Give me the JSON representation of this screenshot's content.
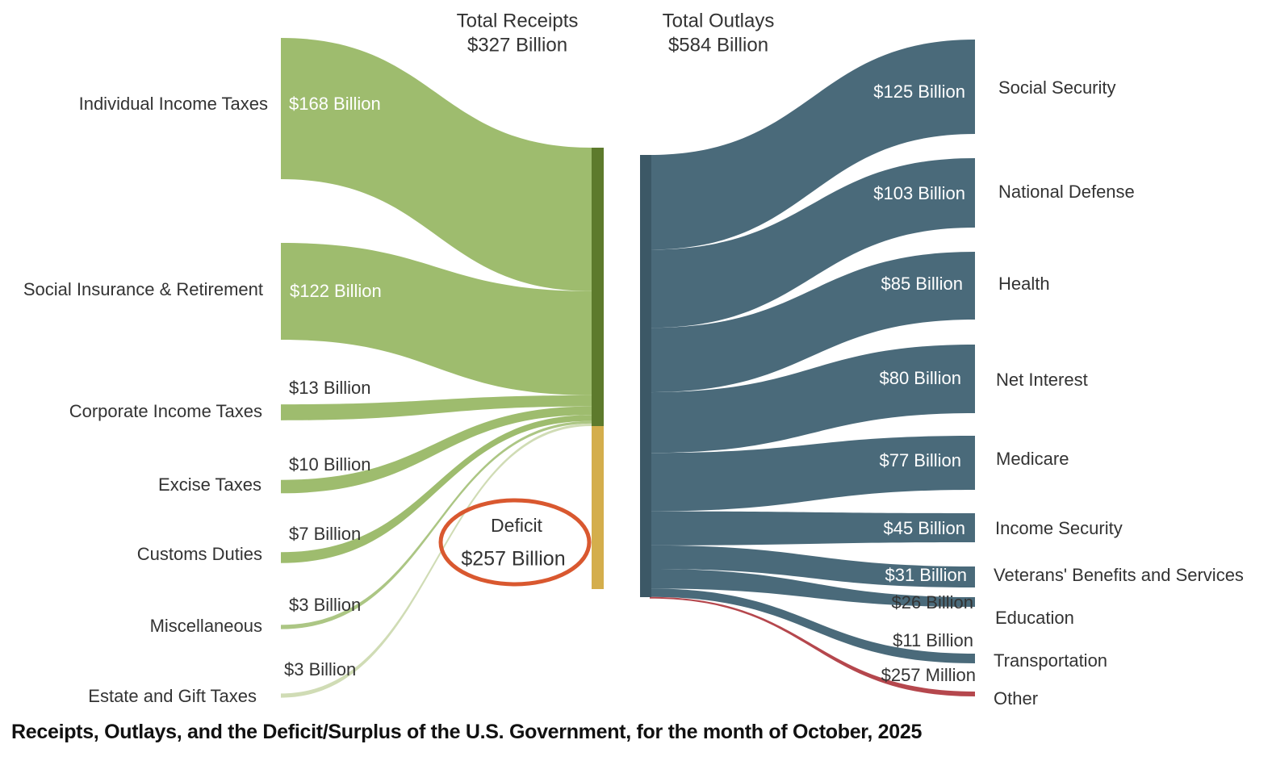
{
  "caption": {
    "part1": "Receipts, Outlays, and the Deficit/Surplus of the U.S. Government,",
    "part2": "for the month of October, 2025"
  },
  "chart_data": {
    "type": "sankey",
    "title_receipts": [
      "Total Receipts",
      "$327 Billion"
    ],
    "title_outlays": [
      "Total Outlays",
      "$584 Billion"
    ],
    "units": "billions of dollars",
    "receipts": [
      {
        "label": "Individual Income Taxes",
        "value": 168,
        "value_label": "$168 Billion"
      },
      {
        "label": "Social Insurance & Retirement",
        "value": 122,
        "value_label": "$122 Billion"
      },
      {
        "label": "Corporate Income Taxes",
        "value": 13,
        "value_label": "$13 Billion"
      },
      {
        "label": "Excise Taxes",
        "value": 10,
        "value_label": "$10 Billion"
      },
      {
        "label": "Customs Duties",
        "value": 7,
        "value_label": "$7 Billion"
      },
      {
        "label": "Miscellaneous",
        "value": 3,
        "value_label": "$3 Billion"
      },
      {
        "label": "Estate and Gift Taxes",
        "value": 3,
        "value_label": "$3 Billion"
      }
    ],
    "deficit": {
      "label": "Deficit",
      "value": 257,
      "value_label": "$257 Billion"
    },
    "outlays": [
      {
        "label": "Social Security",
        "value": 125,
        "value_label": "$125 Billion"
      },
      {
        "label": "National Defense",
        "value": 103,
        "value_label": "$103 Billion"
      },
      {
        "label": "Health",
        "value": 85,
        "value_label": "$85 Billion"
      },
      {
        "label": "Net Interest",
        "value": 80,
        "value_label": "$80 Billion"
      },
      {
        "label": "Medicare",
        "value": 77,
        "value_label": "$77 Billion"
      },
      {
        "label": "Income Security",
        "value": 45,
        "value_label": "$45 Billion"
      },
      {
        "label": "Veterans' Benefits and Services",
        "value": 31,
        "value_label": "$31 Billion"
      },
      {
        "label": "Education",
        "value": 26,
        "value_label": "$26 Billion"
      },
      {
        "label": "Transportation",
        "value": 11,
        "value_label": "$11 Billion"
      },
      {
        "label": "Other",
        "value": 0.257,
        "value_label": "$257 Million"
      }
    ],
    "colors": {
      "receipt_flow": "#9ebc6e",
      "receipt_bar": "#5d7a2c",
      "deficit_bar": "#d4ae4c",
      "deficit_circle": "#d9582f",
      "outlay_flow": "#4a6a7a",
      "outlay_bar": "#3c5866",
      "other_flow": "#b5474d",
      "label_text": "#333333",
      "inner_label": "#ffffff"
    }
  }
}
